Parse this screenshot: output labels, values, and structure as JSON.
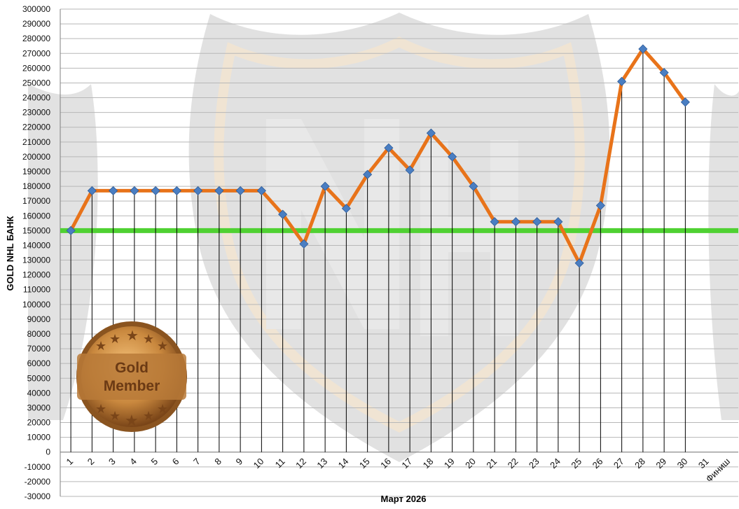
{
  "chart_data": {
    "type": "line",
    "title": "",
    "xlabel": "Март 2026",
    "ylabel": "GOLD NHL БАНК",
    "categories": [
      "1",
      "2",
      "3",
      "4",
      "5",
      "6",
      "7",
      "8",
      "9",
      "10",
      "11",
      "12",
      "13",
      "14",
      "15",
      "16",
      "17",
      "18",
      "19",
      "20",
      "21",
      "22",
      "23",
      "24",
      "25",
      "26",
      "27",
      "28",
      "29",
      "30",
      "31",
      "Финиш"
    ],
    "series": [
      {
        "values": [
          150000,
          177000,
          177000,
          177000,
          177000,
          177000,
          177000,
          177000,
          177000,
          177000,
          161000,
          141000,
          180000,
          165000,
          188000,
          206000,
          191000,
          216000,
          200000,
          180000,
          156000,
          156000,
          156000,
          156000,
          128000,
          167000,
          251000,
          273000,
          257000,
          237000,
          null,
          null
        ]
      }
    ],
    "reference_line": {
      "value": 150000,
      "color": "#4fd132"
    },
    "ylim": [
      -30000,
      300000
    ],
    "ytick_step": 10000,
    "grid": true,
    "colors": {
      "line": "#e8731a",
      "marker": "#4a7ec2",
      "drop_line": "#000000",
      "grid": "#b7b7b7"
    },
    "watermark": "nhl-shield-logo",
    "badge": {
      "line1": "Gold",
      "line2": "Member",
      "colors": {
        "outer": "#a86a2e",
        "inner": "#d89a52",
        "text": "#6b3a14"
      }
    }
  }
}
